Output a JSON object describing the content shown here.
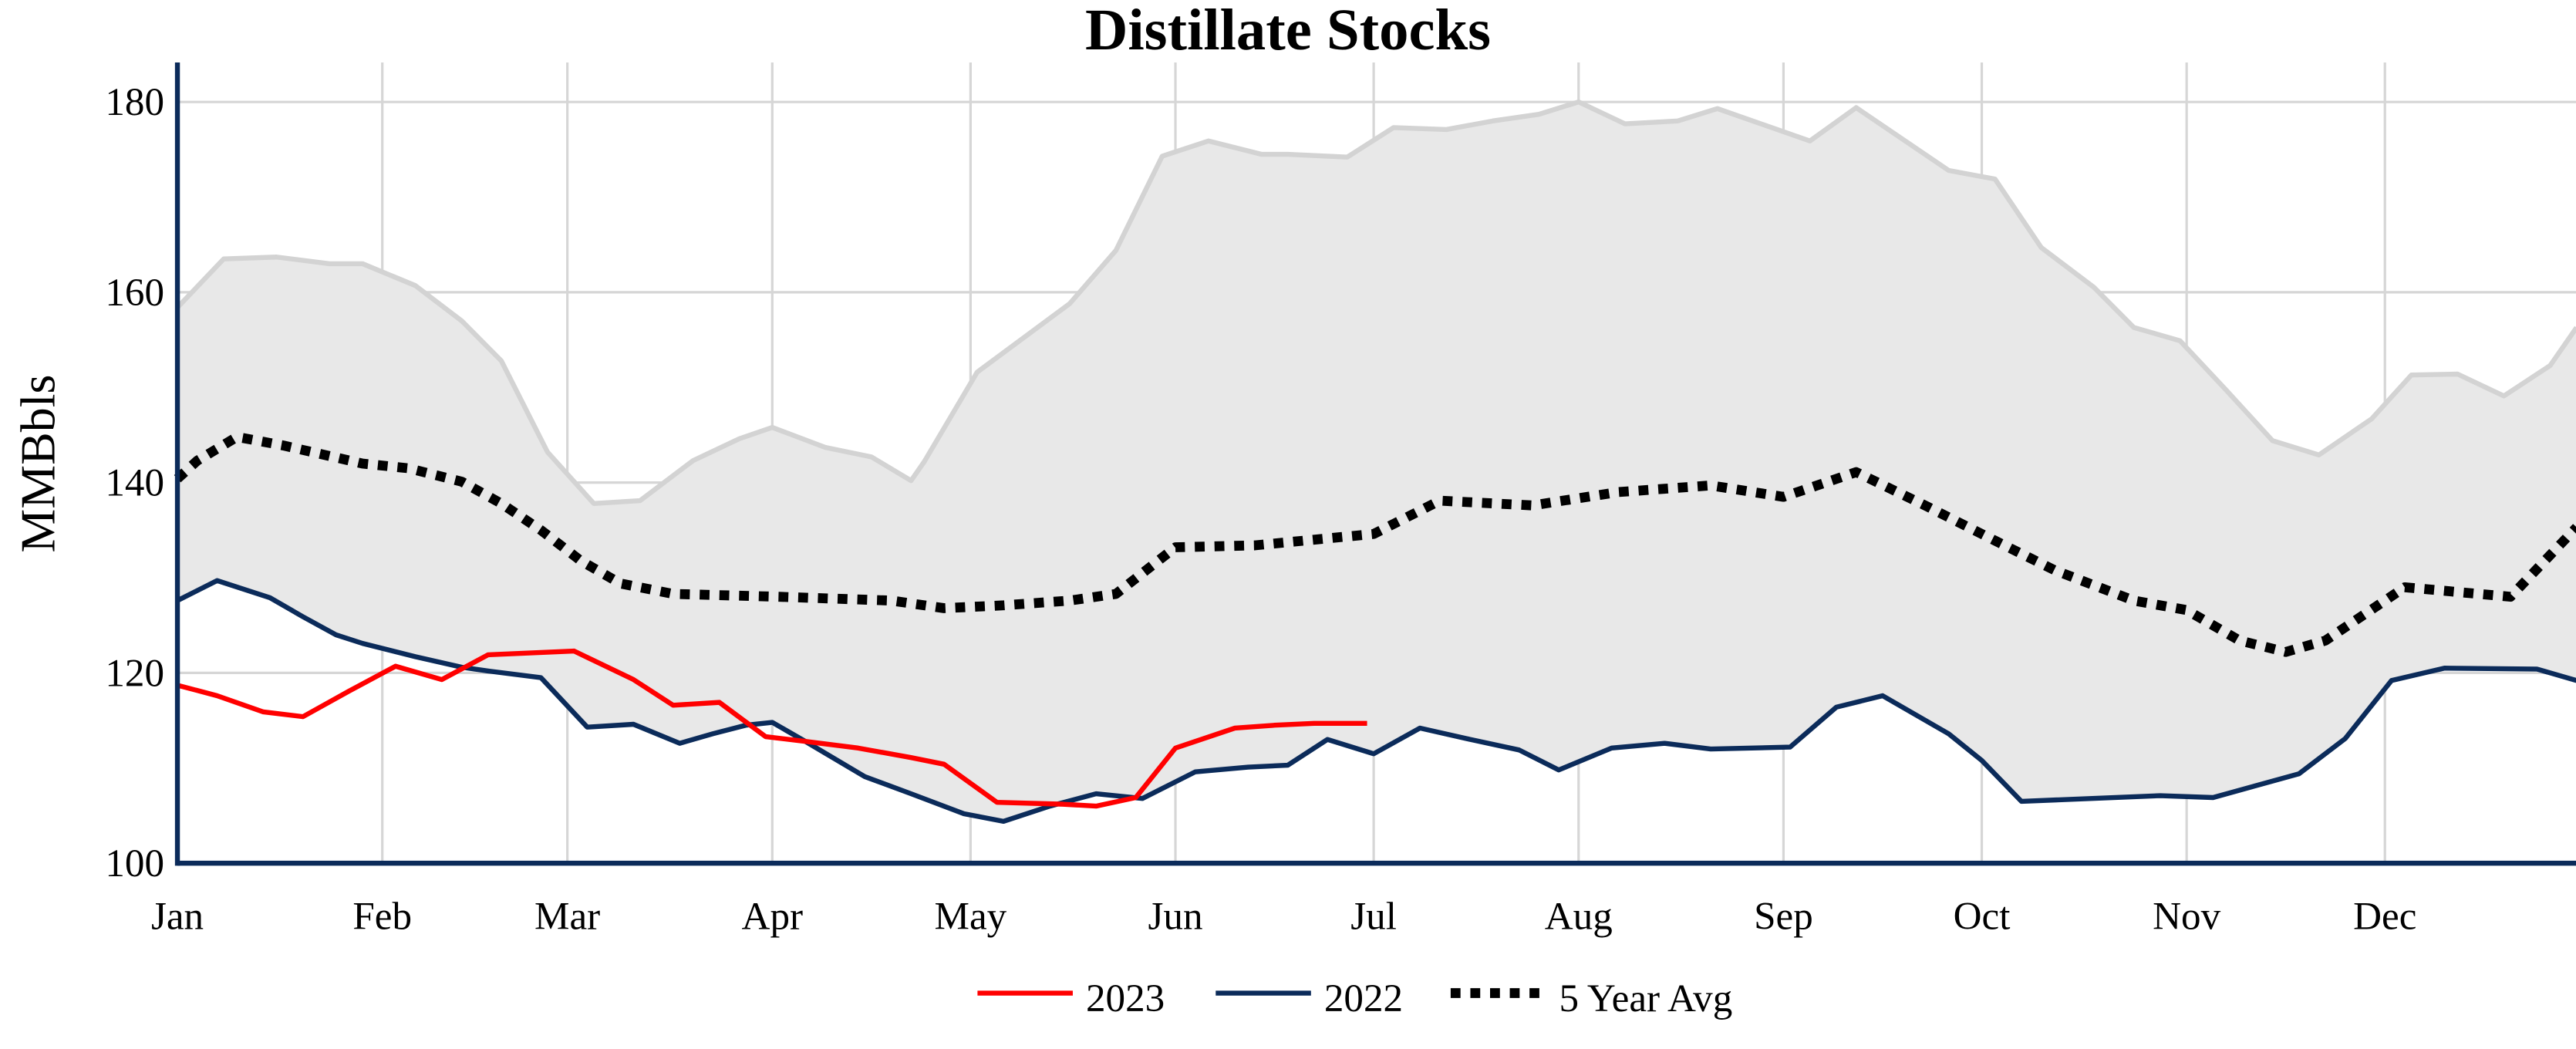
{
  "chart_data": {
    "type": "line",
    "title": "Distillate Stocks",
    "xlabel": "",
    "ylabel": "MMBbls",
    "ylim": [
      100,
      185
    ],
    "yticks": [
      100,
      120,
      140,
      160,
      180
    ],
    "xlim": [
      "01-01",
      "12-31"
    ],
    "xticks": [
      {
        "label": "Jan",
        "date": "01-01"
      },
      {
        "label": "Feb",
        "date": "02-01"
      },
      {
        "label": "Mar",
        "date": "03-01"
      },
      {
        "label": "Apr",
        "date": "04-01"
      },
      {
        "label": "May",
        "date": "05-01"
      },
      {
        "label": "Jun",
        "date": "06-01"
      },
      {
        "label": "Jul",
        "date": "07-01"
      },
      {
        "label": "Aug",
        "date": "08-01"
      },
      {
        "label": "Sep",
        "date": "09-01"
      },
      {
        "label": "Oct",
        "date": "10-01"
      },
      {
        "label": "Nov",
        "date": "11-01"
      },
      {
        "label": "Dec",
        "date": "12-01"
      }
    ],
    "grid": true,
    "legend_placement": "bottom",
    "colors": {
      "s2023": "#ff0000",
      "s2022": "#0b2b5a",
      "avg": "#000000",
      "band_fill": "#e8e8e8",
      "band_line": "#d3d3d3",
      "axis": "#0b2b5a",
      "grid": "#d6d6d6"
    },
    "band_upper": {
      "x": [
        "01-01",
        "01-08",
        "01-16",
        "01-24",
        "01-29",
        "02-06",
        "02-13",
        "02-19",
        "02-26",
        "03-05",
        "03-12",
        "03-20",
        "03-27",
        "04-01",
        "04-09",
        "04-16",
        "04-22",
        "04-24",
        "05-02",
        "05-16",
        "05-23",
        "05-30",
        "06-06",
        "06-14",
        "06-18",
        "06-27",
        "07-04",
        "07-12",
        "07-19",
        "07-26",
        "08-01",
        "08-08",
        "08-16",
        "08-22",
        "09-05",
        "09-12",
        "09-26",
        "10-03",
        "10-10",
        "10-18",
        "10-24",
        "10-31",
        "11-07",
        "11-14",
        "11-21",
        "11-29",
        "12-05",
        "12-12",
        "12-19",
        "12-26",
        "12-30"
      ],
      "y": [
        158.4,
        163.5,
        163.7,
        163.0,
        163.0,
        160.7,
        157.0,
        152.8,
        143.2,
        137.8,
        138.1,
        142.3,
        144.6,
        145.8,
        143.7,
        142.7,
        140.2,
        142.2,
        151.6,
        158.8,
        164.4,
        174.3,
        175.9,
        174.5,
        174.5,
        174.2,
        177.3,
        177.1,
        178.0,
        178.7,
        180.0,
        177.7,
        178.0,
        179.3,
        175.9,
        179.4,
        172.8,
        171.9,
        164.7,
        160.5,
        156.3,
        154.9,
        149.7,
        144.4,
        142.9,
        146.7,
        151.3,
        151.4,
        149.1,
        152.3,
        156.3
      ]
    },
    "series": [
      {
        "name": "2023",
        "style": "solid",
        "x": [
          "01-01",
          "01-07",
          "01-14",
          "01-20",
          "01-27",
          "02-03",
          "02-10",
          "02-17",
          "03-02",
          "03-11",
          "03-17",
          "03-24",
          "03-31",
          "04-06",
          "04-14",
          "04-22",
          "04-27",
          "05-05",
          "05-15",
          "05-20",
          "05-26",
          "06-01",
          "06-10",
          "06-16",
          "06-22",
          "06-30"
        ],
        "y": [
          118.7,
          117.6,
          115.9,
          115.4,
          118.1,
          120.7,
          119.3,
          121.9,
          122.3,
          119.3,
          116.6,
          116.9,
          113.3,
          112.8,
          112.1,
          111.1,
          110.4,
          106.4,
          106.2,
          106.0,
          106.9,
          112.1,
          114.2,
          114.5,
          114.7,
          114.7
        ]
      },
      {
        "name": "2022",
        "style": "solid",
        "x": [
          "01-01",
          "01-07",
          "01-15",
          "01-20",
          "01-25",
          "01-29",
          "02-06",
          "02-13",
          "02-17",
          "02-25",
          "03-04",
          "03-11",
          "03-18",
          "03-23",
          "03-28",
          "04-01",
          "04-06",
          "04-15",
          "04-22",
          "04-30",
          "05-06",
          "05-13",
          "05-20",
          "05-27",
          "06-04",
          "06-12",
          "06-18",
          "06-24",
          "07-01",
          "07-08",
          "07-15",
          "07-23",
          "07-29",
          "08-06",
          "08-14",
          "08-21",
          "09-02",
          "09-09",
          "09-16",
          "09-26",
          "10-01",
          "10-07",
          "10-28",
          "11-05",
          "11-18",
          "11-25",
          "12-02",
          "12-10",
          "12-24",
          "12-30"
        ],
        "y": [
          127.6,
          129.7,
          127.9,
          125.9,
          124.0,
          123.1,
          121.7,
          120.6,
          120.2,
          119.5,
          114.3,
          114.6,
          112.6,
          113.6,
          114.5,
          114.8,
          112.8,
          109.1,
          107.3,
          105.2,
          104.4,
          106.0,
          107.3,
          106.8,
          109.6,
          110.1,
          110.3,
          113.0,
          111.5,
          114.2,
          113.1,
          111.9,
          109.8,
          112.1,
          112.6,
          112.0,
          112.2,
          116.4,
          117.6,
          113.6,
          110.8,
          106.5,
          107.1,
          106.9,
          109.4,
          113.1,
          119.2,
          120.5,
          120.4,
          119.2
        ]
      },
      {
        "name": "5 Year Avg",
        "style": "dotted",
        "x": [
          "01-01",
          "01-04",
          "01-10",
          "01-17",
          "01-29",
          "02-05",
          "02-13",
          "02-19",
          "02-25",
          "03-03",
          "03-09",
          "03-17",
          "04-02",
          "04-19",
          "04-27",
          "05-06",
          "05-16",
          "05-23",
          "06-01",
          "06-13",
          "07-01",
          "07-11",
          "07-25",
          "08-07",
          "08-21",
          "09-01",
          "09-12",
          "09-23",
          "10-03",
          "10-12",
          "10-24",
          "11-01",
          "11-09",
          "11-16",
          "11-22",
          "12-04",
          "12-20",
          "12-30"
        ],
        "y": [
          140.4,
          142.3,
          144.8,
          143.9,
          142.0,
          141.5,
          140.1,
          137.8,
          135.0,
          131.8,
          129.4,
          128.3,
          128.0,
          127.6,
          126.8,
          127.1,
          127.6,
          128.3,
          133.2,
          133.4,
          134.6,
          138.1,
          137.6,
          139.0,
          139.7,
          138.5,
          141.1,
          137.4,
          133.9,
          130.8,
          127.6,
          126.6,
          123.4,
          122.2,
          123.4,
          129.0,
          128.0,
          135.3
        ]
      }
    ]
  }
}
